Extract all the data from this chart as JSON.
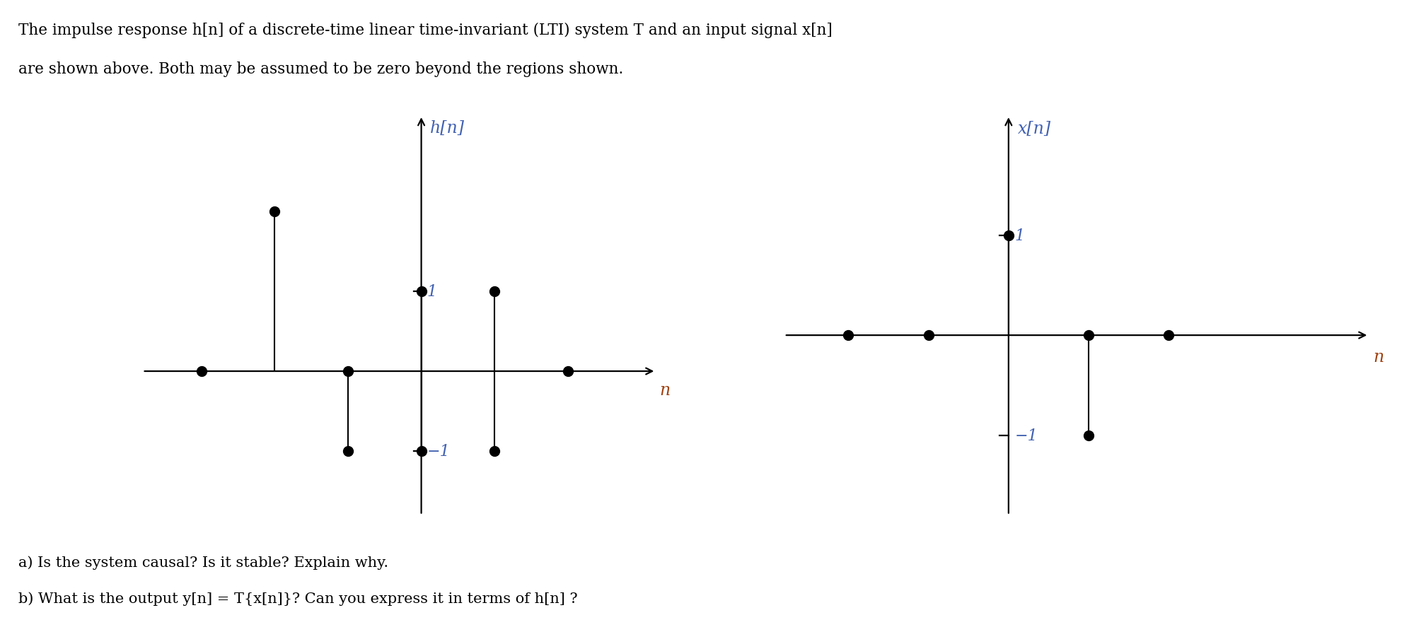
{
  "bg_color": "#ffffff",
  "header_line1": "The impulse response h[n] of a discrete-time linear time-invariant (LTI) system T and an input signal x[n]",
  "header_line2": "are shown above. Both may be assumed to be zero beyond the regions shown.",
  "footer_line1": "a) Is the system causal? Is it stable? Explain why.",
  "footer_line2": "b) What is the output y[n] = T{x[n]}? Can you express it in terms of h[n] ?",
  "plot1": {
    "ylabel": "h[n]",
    "xlabel": "n",
    "label_color": "#4060b0",
    "xlabel_color": "#a04010",
    "xlim": [
      -3.8,
      3.2
    ],
    "ylim": [
      -1.8,
      3.2
    ],
    "stems_pos": [
      {
        "n": -2,
        "v": 2.0
      },
      {
        "n": 0,
        "v": 1.0
      },
      {
        "n": 1,
        "v": 1.0
      }
    ],
    "dots_axis": [
      -3,
      -1
    ],
    "stems_neg": [
      {
        "n": -1,
        "v": -1.0
      },
      {
        "n": 0,
        "v": -1.0
      },
      {
        "n": 1,
        "v": -1.0
      }
    ],
    "ytick1_val": 1.0,
    "ytickm1_val": -1.0,
    "dot2_on_axis": 2
  },
  "plot2": {
    "ylabel": "x[n]",
    "xlabel": "n",
    "label_color": "#4060b0",
    "xlabel_color": "#a04010",
    "xlim": [
      -2.8,
      4.5
    ],
    "ylim": [
      -1.8,
      2.2
    ],
    "stems_pos": [
      {
        "n": 0,
        "v": 1.0
      }
    ],
    "dots_axis": [
      -2,
      -1,
      1,
      2
    ],
    "stems_neg": [
      {
        "n": 1,
        "v": -1.0
      }
    ],
    "ytick1_val": 1.0,
    "ytickm1_val": -1.0
  },
  "dot_ms": 10,
  "stem_lw": 1.5,
  "axis_lw": 1.6,
  "font_size_label": 17,
  "font_size_tick": 16,
  "font_size_header": 15.5,
  "font_size_footer": 15.0
}
